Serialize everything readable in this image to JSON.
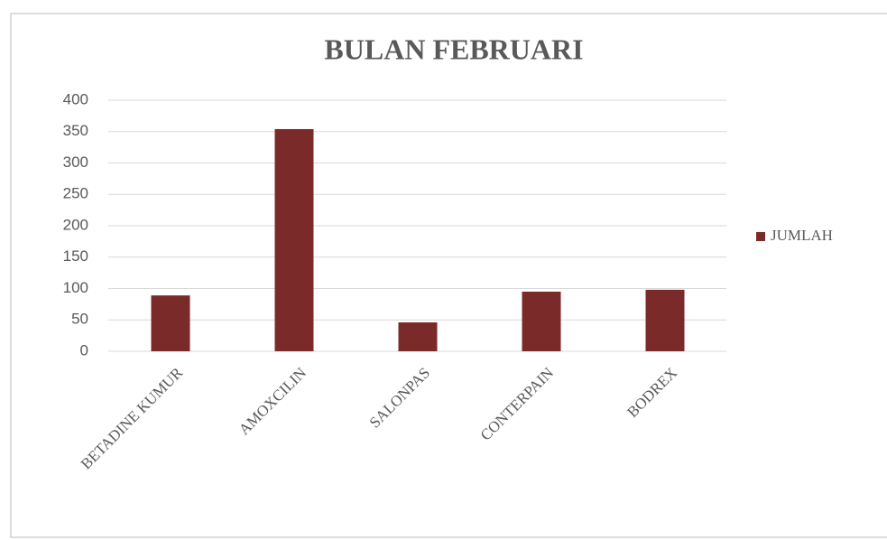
{
  "chart_data": {
    "type": "bar",
    "title": "BULAN FEBRUARI",
    "categories": [
      "BETADINE KUMUR",
      "AMOXCILIN",
      "SALONPAS",
      "CONTERPAIN",
      "BODREX"
    ],
    "series": [
      {
        "name": "JUMLAH",
        "color": "#7b2a2a",
        "values": [
          89,
          354,
          46,
          95,
          98
        ]
      }
    ],
    "ylim": [
      0,
      400
    ],
    "yticks": [
      0,
      50,
      100,
      150,
      200,
      250,
      300,
      350,
      400
    ],
    "grid": true,
    "legend": "right"
  }
}
